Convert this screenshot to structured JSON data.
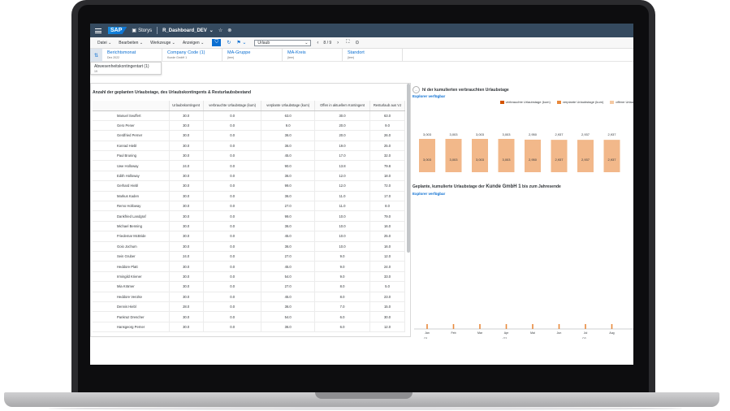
{
  "shell": {
    "logo": "SAP",
    "stories_label": "Storys",
    "story_name": "R_Dashboard_DEV"
  },
  "toolbar": {
    "menus": [
      "Datei",
      "Bearbeiten",
      "Werkzeuge",
      "Anzeigen"
    ],
    "page_select": "Urlaub",
    "pager": "8 / 9"
  },
  "filters": [
    {
      "title": "Berichtsmonat",
      "sub": "Dez 2022"
    },
    {
      "title": "Company Code (1)",
      "sub": "Kunde GmbH 1"
    },
    {
      "title": "MA-Gruppe",
      "sub": "(leer)"
    },
    {
      "title": "MA-Kreis",
      "sub": "(leer)"
    },
    {
      "title": "Standort",
      "sub": "(leer)"
    }
  ],
  "filter_popup": {
    "title": "Abwesenheitskontingentart (1)",
    "sub": "19"
  },
  "table": {
    "title": "Anzahl der geplanten Urlaubstage, des Urlaubskontingents & Resturlaubsbestand",
    "columns": [
      "Urlaubskontingent",
      "verbrauchte Urlaubstage (kum)",
      "verplante Urlaubstage (kum)",
      "Offen in aktuellem Kontingent",
      "Resturlaub aus VJ"
    ],
    "rows": [
      {
        "name": "Manuel Seuffert",
        "v": [
          "30.0",
          "0.0",
          "63.0",
          "30.0",
          "63.0"
        ]
      },
      {
        "name": "Gero Pener",
        "v": [
          "30.0",
          "0.0",
          "9.0",
          "20.0",
          "9.0"
        ]
      },
      {
        "name": "Gerdfried Perner",
        "v": [
          "30.0",
          "0.0",
          "36.0",
          "20.0",
          "26.0"
        ]
      },
      {
        "name": "Konrad Hiebl",
        "v": [
          "30.0",
          "0.0",
          "36.0",
          "19.0",
          "25.0"
        ]
      },
      {
        "name": "Paul Bruning",
        "v": [
          "30.0",
          "0.0",
          "45.0",
          "17.0",
          "32.0"
        ]
      },
      {
        "name": "Uwe Holloway",
        "v": [
          "24.0",
          "0.0",
          "90.0",
          "13.8",
          "79.8"
        ]
      },
      {
        "name": "Edith Holloway",
        "v": [
          "30.0",
          "0.0",
          "36.0",
          "12.0",
          "18.0"
        ]
      },
      {
        "name": "Gerhard Hiebl",
        "v": [
          "30.0",
          "0.0",
          "99.0",
          "12.0",
          "72.0"
        ]
      },
      {
        "name": "Markus Kaden",
        "v": [
          "30.0",
          "0.0",
          "36.0",
          "11.0",
          "17.0"
        ]
      },
      {
        "name": "Remo Holloway",
        "v": [
          "30.0",
          "0.0",
          "27.0",
          "11.0",
          "8.0"
        ]
      },
      {
        "name": "Dankfried Landgraf",
        "v": [
          "30.0",
          "0.0",
          "99.0",
          "10.0",
          "79.0"
        ]
      },
      {
        "name": "Michael Benning",
        "v": [
          "30.0",
          "0.0",
          "36.0",
          "10.0",
          "16.0"
        ]
      },
      {
        "name": "Friedemar McBride",
        "v": [
          "30.0",
          "0.0",
          "45.0",
          "10.0",
          "25.0"
        ]
      },
      {
        "name": "Goio Jochum",
        "v": [
          "30.0",
          "0.0",
          "36.0",
          "10.0",
          "16.0"
        ]
      },
      {
        "name": "Sein Gruber",
        "v": [
          "24.0",
          "0.0",
          "27.0",
          "9.0",
          "12.0"
        ]
      },
      {
        "name": "Heddore Platt",
        "v": [
          "30.0",
          "0.0",
          "45.0",
          "9.0",
          "24.0"
        ]
      },
      {
        "name": "Irmingild Kriener",
        "v": [
          "30.0",
          "0.0",
          "54.0",
          "9.0",
          "33.0"
        ]
      },
      {
        "name": "Mia Krämer",
        "v": [
          "30.0",
          "0.0",
          "27.0",
          "8.0",
          "5.0"
        ]
      },
      {
        "name": "Heddore Venzke",
        "v": [
          "30.0",
          "0.0",
          "45.0",
          "8.0",
          "23.0"
        ]
      },
      {
        "name": "Dennis Hiebl",
        "v": [
          "28.0",
          "0.0",
          "36.0",
          "7.0",
          "15.0"
        ]
      },
      {
        "name": "Pankraz Drescher",
        "v": [
          "30.0",
          "0.0",
          "54.0",
          "6.0",
          "30.0"
        ]
      },
      {
        "name": "Hansgeorg Perner",
        "v": [
          "30.0",
          "0.0",
          "36.0",
          "6.0",
          "12.0"
        ]
      }
    ]
  },
  "chart1": {
    "title": "hl der kumulierten verbrauchten Urlaubstage",
    "subtitle": "Explorer verfügbar",
    "more": "...",
    "legend": [
      {
        "name": "verbrauchte Urlaubstage (kum)",
        "color": "#d35400"
      },
      {
        "name": "verplante Urlaubstage (kum)",
        "color": "#e8893c"
      },
      {
        "name": "offene Urlau",
        "color": "#f4c9a3"
      }
    ]
  },
  "chart2": {
    "title_prefix": "Geplante, kumulierte Urlaubstage der ",
    "title_company": "Kunde GmbH 1",
    "title_suffix": " bis zum Jahresende",
    "subtitle": "Explorer verfügbar"
  },
  "chart_data": [
    {
      "type": "bar",
      "categories": [
        "Jan",
        "Feb",
        "Mar",
        "Apr",
        "Mai",
        "Jun",
        "Jul",
        "Aug"
      ],
      "quarters": [
        "Q1",
        "Q2",
        "Q3"
      ],
      "year": "2022",
      "series": [
        {
          "name": "verplante Urlaubstage (kum)",
          "values": [
            3003,
            3003,
            3003,
            3003,
            2950,
            2937,
            2937,
            2937
          ]
        },
        {
          "name": "Total",
          "values": [
            3003,
            3003,
            3003,
            3003,
            2950,
            2937,
            2937,
            2937
          ]
        }
      ],
      "value_labels": [
        "3,003",
        "3,003",
        "3,003",
        "3,003",
        "2,950",
        "2,937",
        "2,937",
        "2,937"
      ],
      "top_labels": [
        "3,003",
        "3,003",
        "3,003",
        "3,003",
        "2,950",
        "2,937",
        "2,937",
        "2,937"
      ]
    },
    {
      "type": "line",
      "categories": [
        "Jan",
        "Feb",
        "Mar",
        "Apr",
        "Mai",
        "Jun",
        "Jul",
        "Aug"
      ],
      "quarters": [
        "Q1",
        "Q2",
        "Q3"
      ],
      "year": "2022"
    }
  ]
}
